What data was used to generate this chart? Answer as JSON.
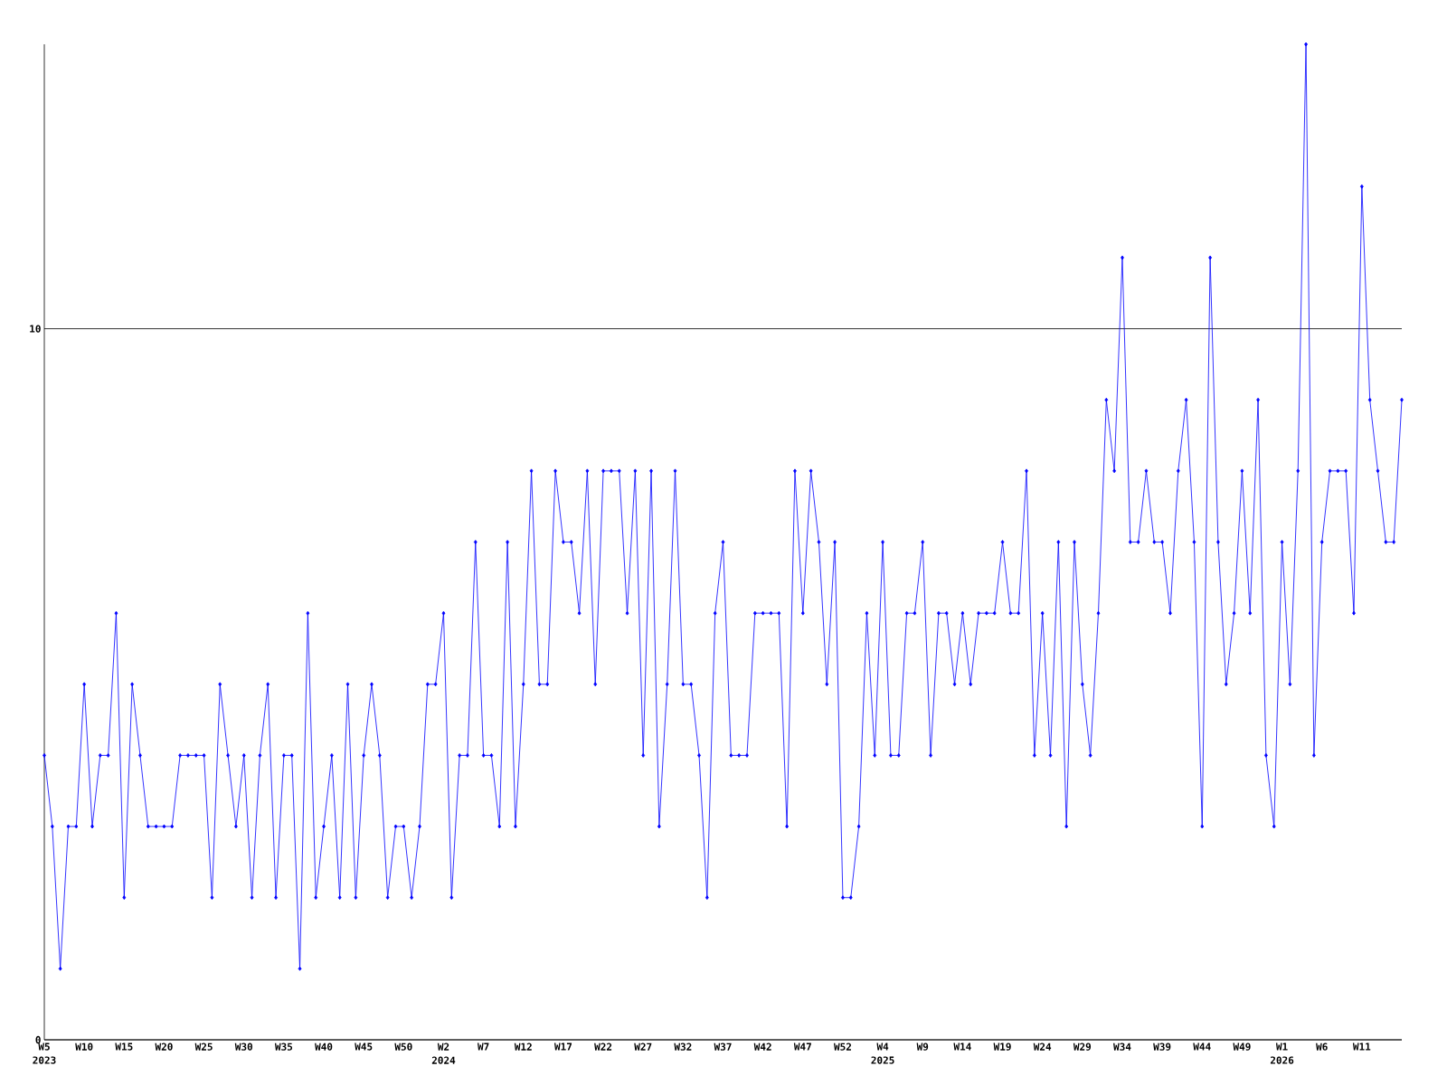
{
  "chart_data": {
    "type": "line",
    "categories": [
      "W5 2023",
      null,
      null,
      null,
      null,
      "W10",
      null,
      null,
      null,
      null,
      "W15",
      null,
      null,
      null,
      null,
      "W20",
      null,
      null,
      null,
      null,
      "W25",
      null,
      null,
      null,
      null,
      "W30",
      null,
      null,
      null,
      null,
      "W35",
      null,
      null,
      null,
      null,
      "W40",
      null,
      null,
      null,
      null,
      "W45",
      null,
      null,
      null,
      null,
      "W50",
      null,
      null,
      null,
      null,
      "W2 2024",
      null,
      null,
      null,
      null,
      "W7",
      null,
      null,
      null,
      null,
      "W12",
      null,
      null,
      null,
      null,
      "W17",
      null,
      null,
      null,
      null,
      "W22",
      null,
      null,
      null,
      null,
      "W27",
      null,
      null,
      null,
      null,
      "W32",
      null,
      null,
      null,
      null,
      "W37",
      null,
      null,
      null,
      null,
      "W42",
      null,
      null,
      null,
      null,
      "W47",
      null,
      null,
      null,
      null,
      "W52",
      null,
      null,
      null,
      null,
      "W4 2025",
      null,
      null,
      null,
      null,
      "W9",
      null,
      null,
      null,
      null,
      "W14",
      null,
      null,
      null,
      null,
      "W19",
      null,
      null,
      null,
      null,
      "W24",
      null,
      null,
      null,
      null,
      "W29",
      null,
      null,
      null,
      null,
      "W34",
      null,
      null,
      null,
      null,
      "W39",
      null,
      null,
      null,
      null,
      "W44",
      null,
      null,
      null,
      null,
      "W49",
      null,
      null,
      null,
      null,
      "W1 2026",
      null,
      null,
      null,
      null,
      "W6",
      null,
      null,
      null,
      null,
      "W11",
      null,
      null,
      null,
      null,
      null
    ],
    "series": [
      {
        "color": "#0000ff",
        "values": [
          4,
          3,
          1,
          3,
          3,
          5,
          3,
          4,
          4,
          6,
          2,
          5,
          4,
          3,
          3,
          3,
          3,
          4,
          4,
          4,
          4,
          2,
          5,
          4,
          3,
          4,
          2,
          4,
          5,
          2,
          4,
          4,
          1,
          6,
          2,
          3,
          4,
          2,
          5,
          2,
          4,
          5,
          4,
          2,
          3,
          3,
          2,
          3,
          5,
          5,
          6,
          2,
          4,
          4,
          7,
          4,
          4,
          3,
          7,
          3,
          5,
          8,
          5,
          5,
          8,
          7,
          7,
          6,
          8,
          5,
          8,
          8,
          8,
          6,
          8,
          4,
          8,
          3,
          5,
          8,
          5,
          5,
          4,
          2,
          6,
          7,
          4,
          4,
          4,
          6,
          6,
          6,
          6,
          3,
          8,
          6,
          8,
          7,
          5,
          7,
          2,
          2,
          3,
          6,
          4,
          7,
          4,
          4,
          6,
          6,
          7,
          4,
          6,
          6,
          5,
          6,
          5,
          6,
          6,
          6,
          7,
          6,
          6,
          8,
          4,
          6,
          4,
          7,
          3,
          7,
          5,
          4,
          6,
          9,
          8,
          11,
          7,
          7,
          8,
          7,
          7,
          6,
          8,
          9,
          7,
          3,
          11,
          7,
          5,
          6,
          8,
          6,
          9,
          4,
          3,
          7,
          5,
          8,
          14,
          4,
          7,
          8,
          8,
          8,
          6,
          12,
          9,
          8,
          7,
          7,
          9
        ]
      }
    ],
    "ylim": [
      0,
      14
    ],
    "yticks": [
      0,
      10
    ],
    "grid": "y",
    "marker": "diamond",
    "line_style": "solid"
  }
}
